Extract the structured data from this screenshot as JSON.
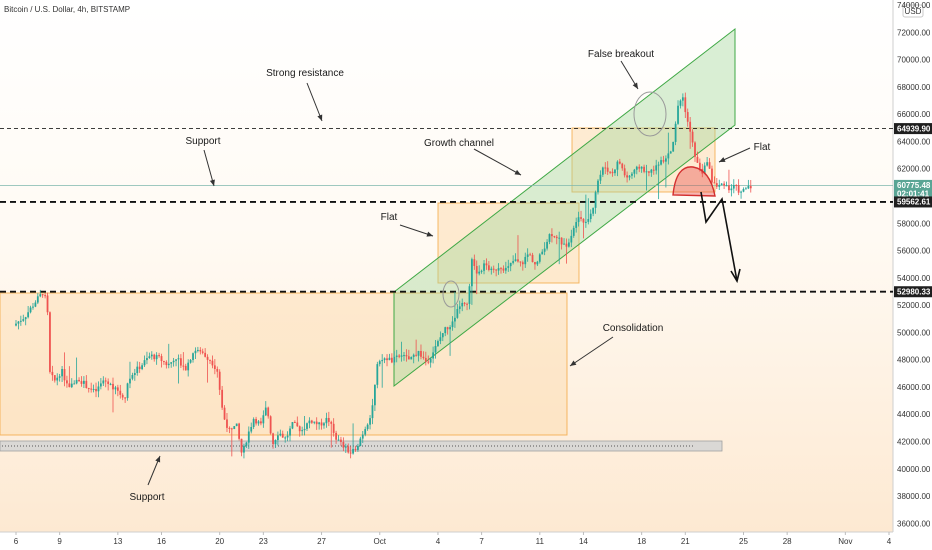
{
  "header": {
    "symbol_line": "Bitcoin / U.S. Dollar, 4h, BITSTAMP"
  },
  "currency_badge": "USD",
  "chart_data": {
    "type": "candlestick",
    "ylim": [
      35000,
      74000
    ],
    "xlim": [
      "Sep 6",
      "Nov 5"
    ],
    "y_ticks": [
      "36000.00",
      "38000.00",
      "40000.00",
      "42000.00",
      "44000.00",
      "46000.00",
      "48000.00",
      "50000.00",
      "52000.00",
      "54000.00",
      "56000.00",
      "58000.00",
      "60000.00",
      "62000.00",
      "64000.00",
      "66000.00",
      "68000.00",
      "70000.00",
      "72000.00",
      "74000.00"
    ],
    "x_ticks": [
      {
        "label": "6",
        "day": 6
      },
      {
        "label": "9",
        "day": 9
      },
      {
        "label": "13",
        "day": 13
      },
      {
        "label": "16",
        "day": 16
      },
      {
        "label": "20",
        "day": 20
      },
      {
        "label": "23",
        "day": 23
      },
      {
        "label": "27",
        "day": 27
      },
      {
        "label": "Oct",
        "day": 31
      },
      {
        "label": "4",
        "day": 35
      },
      {
        "label": "7",
        "day": 38
      },
      {
        "label": "11",
        "day": 42
      },
      {
        "label": "14",
        "day": 45
      },
      {
        "label": "18",
        "day": 49
      },
      {
        "label": "21",
        "day": 52
      },
      {
        "label": "25",
        "day": 56
      },
      {
        "label": "28",
        "day": 59
      },
      {
        "label": "Nov",
        "day": 63
      },
      {
        "label": "4",
        "day": 66
      }
    ],
    "price_levels": [
      {
        "value": "64939.90",
        "price": 64939.9,
        "style": "dashed-thin",
        "badge_color": "#1f1f1f"
      },
      {
        "value": "60775.48",
        "price": 60775.48,
        "style": "solid-thin",
        "badge_color": "#5aa595"
      },
      {
        "value": "59562.61",
        "price": 59562.61,
        "style": "dashed-thick",
        "badge_color": "#1f1f1f"
      },
      {
        "value": "52980.33",
        "price": 52980.33,
        "style": "dashed-thick",
        "badge_color": "#1f1f1f"
      }
    ],
    "countdown": "02:01:41",
    "price_path": [
      [
        6,
        50500
      ],
      [
        6.8,
        51200
      ],
      [
        7.6,
        52400
      ],
      [
        8,
        52900
      ],
      [
        8.3,
        52200
      ],
      [
        8.5,
        47000
      ],
      [
        8.8,
        46400
      ],
      [
        9.3,
        47200
      ],
      [
        9.8,
        45800
      ],
      [
        10.4,
        46700
      ],
      [
        11,
        46100
      ],
      [
        11.6,
        45600
      ],
      [
        12.2,
        46500
      ],
      [
        13,
        45900
      ],
      [
        13.6,
        45100
      ],
      [
        14,
        46800
      ],
      [
        14.7,
        47500
      ],
      [
        15.4,
        48300
      ],
      [
        16,
        48100
      ],
      [
        16.6,
        47600
      ],
      [
        17.2,
        48200
      ],
      [
        17.8,
        47300
      ],
      [
        18.4,
        48700
      ],
      [
        19,
        48500
      ],
      [
        19.6,
        47900
      ],
      [
        20,
        47200
      ],
      [
        20.4,
        43900
      ],
      [
        20.9,
        42600
      ],
      [
        21.3,
        43300
      ],
      [
        21.7,
        41000
      ],
      [
        22.1,
        42500
      ],
      [
        22.5,
        43700
      ],
      [
        23,
        43200
      ],
      [
        23.4,
        44600
      ],
      [
        23.8,
        41800
      ],
      [
        24.2,
        42700
      ],
      [
        24.7,
        42200
      ],
      [
        25.2,
        43300
      ],
      [
        25.8,
        42800
      ],
      [
        26.4,
        43600
      ],
      [
        27,
        43200
      ],
      [
        27.6,
        43700
      ],
      [
        28.2,
        42200
      ],
      [
        28.7,
        41600
      ],
      [
        29.2,
        41100
      ],
      [
        29.7,
        41900
      ],
      [
        30.2,
        43100
      ],
      [
        30.6,
        44100
      ],
      [
        31,
        47500
      ],
      [
        31.5,
        48200
      ],
      [
        32,
        47900
      ],
      [
        32.6,
        48300
      ],
      [
        33.2,
        48000
      ],
      [
        33.8,
        48600
      ],
      [
        34.4,
        47800
      ],
      [
        35,
        48900
      ],
      [
        35.6,
        50200
      ],
      [
        36.2,
        50700
      ],
      [
        36.7,
        52100
      ],
      [
        37.2,
        51900
      ],
      [
        37.5,
        55200
      ],
      [
        37.9,
        54300
      ],
      [
        38.4,
        55000
      ],
      [
        38.9,
        54400
      ],
      [
        39.4,
        54900
      ],
      [
        39.9,
        54600
      ],
      [
        40.4,
        55300
      ],
      [
        40.9,
        55000
      ],
      [
        41.4,
        55800
      ],
      [
        41.9,
        54900
      ],
      [
        42.4,
        56100
      ],
      [
        42.9,
        57300
      ],
      [
        43.4,
        57000
      ],
      [
        43.9,
        56200
      ],
      [
        44.3,
        57100
      ],
      [
        44.8,
        58700
      ],
      [
        45.3,
        57900
      ],
      [
        45.8,
        59100
      ],
      [
        46.1,
        61000
      ],
      [
        46.6,
        62200
      ],
      [
        47.1,
        61600
      ],
      [
        47.6,
        62600
      ],
      [
        48.1,
        61300
      ],
      [
        48.6,
        61700
      ],
      [
        49.1,
        62200
      ],
      [
        49.6,
        61600
      ],
      [
        50.1,
        62100
      ],
      [
        50.6,
        62600
      ],
      [
        51.1,
        63100
      ],
      [
        51.4,
        64300
      ],
      [
        51.7,
        66900
      ],
      [
        52,
        67200
      ],
      [
        52.3,
        65600
      ],
      [
        52.7,
        63600
      ],
      [
        53,
        62300
      ],
      [
        53.4,
        61700
      ],
      [
        53.7,
        62700
      ],
      [
        54,
        61100
      ],
      [
        54.4,
        60600
      ],
      [
        54.8,
        61000
      ],
      [
        55.2,
        60500
      ],
      [
        55.6,
        60700
      ],
      [
        56,
        60200
      ],
      [
        56.5,
        60775
      ]
    ]
  },
  "annotations": {
    "strong_resistance": "Strong resistance",
    "support_upper": "Support",
    "growth_channel": "Growth channel",
    "false_breakout": "False breakout",
    "flat_upper": "Flat",
    "flat_middle": "Flat",
    "consolidation": "Consolidation",
    "support_lower": "Support"
  }
}
